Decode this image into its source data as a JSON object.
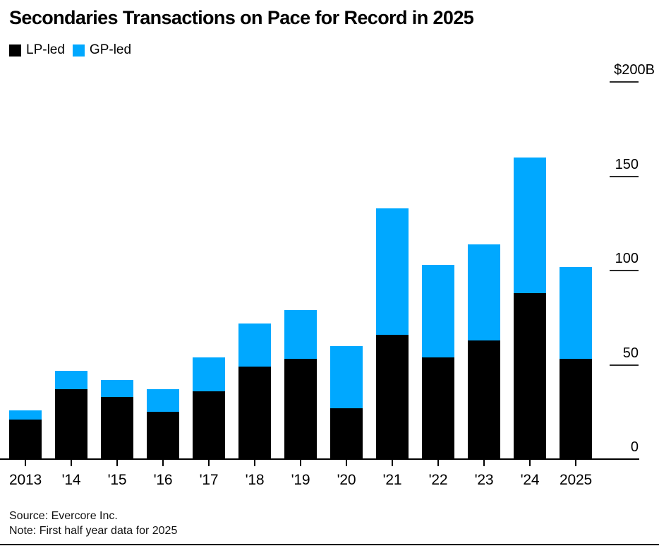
{
  "header": {
    "title": "Secondaries Transactions on Pace for Record in 2025"
  },
  "footer": {
    "source": "Source: Evercore Inc.",
    "note": "Note: First half year data for 2025"
  },
  "chart_data": {
    "type": "bar",
    "stacked": true,
    "title": "Secondaries Transactions on Pace for Record in 2025",
    "unit": "billions USD",
    "categories": [
      "2013",
      "'14",
      "'15",
      "'16",
      "'17",
      "'18",
      "'19",
      "'20",
      "'21",
      "'22",
      "'23",
      "'24",
      "2025"
    ],
    "series": [
      {
        "name": "LP-led",
        "color": "#000000",
        "values": [
          21,
          37,
          33,
          25,
          36,
          49,
          53,
          27,
          66,
          54,
          63,
          88,
          53
        ]
      },
      {
        "name": "GP-led",
        "color": "#00A8FF",
        "values": [
          5,
          10,
          9,
          12,
          18,
          23,
          26,
          33,
          67,
          49,
          51,
          72,
          49
        ]
      }
    ],
    "totals": [
      26,
      47,
      42,
      37,
      54,
      72,
      79,
      60,
      133,
      103,
      114,
      160,
      102
    ],
    "ylim": [
      0,
      200
    ],
    "yticks": [
      {
        "value": 200,
        "label": "$200B"
      },
      {
        "value": 150,
        "label": "150"
      },
      {
        "value": 100,
        "label": "100"
      },
      {
        "value": 50,
        "label": "50"
      },
      {
        "value": 0,
        "label": "0"
      }
    ],
    "axis_side": "right",
    "grid": false,
    "legend_position": "top-left"
  }
}
